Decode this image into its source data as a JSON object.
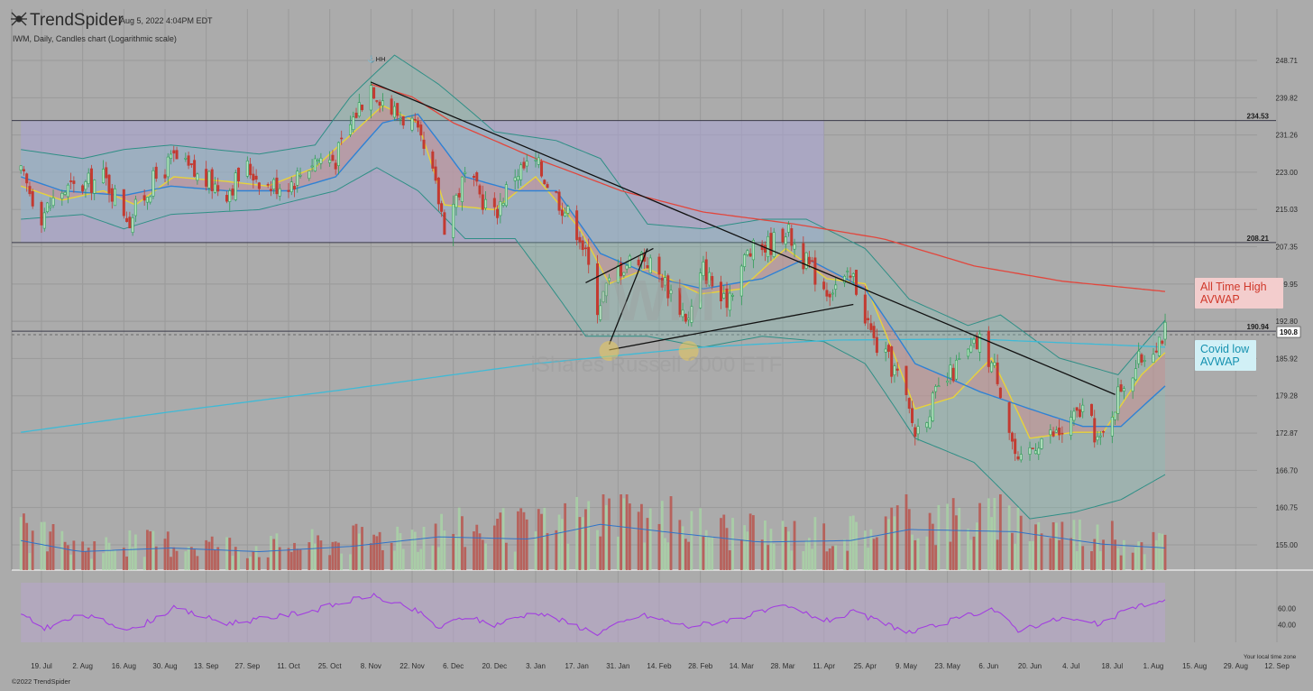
{
  "header": {
    "brand": "TrendSpider",
    "timestamp": "Aug 5, 2022 4:04PM EDT",
    "chart_subtitle": "IWM, Daily, Candles chart (Logarithmic scale)"
  },
  "watermark": {
    "ticker": "IWM",
    "name": "iShares Russell 2000 ETF"
  },
  "footer": {
    "copyright": "©2022 TrendSpider",
    "timezone_note": "Your local time zone"
  },
  "callouts": {
    "ath_line1": "All Time High",
    "ath_line2": "AVWAP",
    "covid_line1": "Covid low",
    "covid_line2": "AVWAP"
  },
  "colors": {
    "background": "#ababab",
    "box": "#a9a4d6",
    "bollinger_fill": "#7fc6bc",
    "bollinger_line": "#2f8f86",
    "ema_fast": "#e7d23a",
    "ema_slow": "#2f82d4",
    "ath_avwap": "#e2463c",
    "covid_avwap": "#3fbad6",
    "up_candle": "#2f9e57",
    "down_candle": "#c33a31",
    "rsi": "#a23ee0"
  },
  "chart_data": {
    "type": "candlestick",
    "title": "IWM, Daily, Candles chart (Logarithmic scale)",
    "y_scale": "log",
    "ylim": [
      152,
      252
    ],
    "price_ticks": [
      155.0,
      160.75,
      166.7,
      172.87,
      179.28,
      185.92,
      192.8,
      199.95,
      207.35,
      215.03,
      223.0,
      231.26,
      239.82,
      248.71
    ],
    "x_tick_labels": [
      "19. Jul",
      "2. Aug",
      "16. Aug",
      "30. Aug",
      "13. Sep",
      "27. Sep",
      "11. Oct",
      "25. Oct",
      "8. Nov",
      "22. Nov",
      "6. Dec",
      "20. Dec",
      "3. Jan",
      "17. Jan",
      "31. Jan",
      "14. Feb",
      "28. Feb",
      "14. Mar",
      "28. Mar",
      "11. Apr",
      "25. Apr",
      "9. May",
      "23. May",
      "6. Jun",
      "20. Jun",
      "4. Jul",
      "18. Jul",
      "1. Aug",
      "15. Aug",
      "29. Aug",
      "12. Sep"
    ],
    "x_range": [
      "2021-07-12",
      "2022-09-15"
    ],
    "levels": [
      {
        "label": "234.53",
        "value": 234.53
      },
      {
        "label": "208.21",
        "value": 208.21
      },
      {
        "label": "190.94",
        "value": 190.94
      }
    ],
    "last_price": {
      "label": "190.8",
      "value": 190.8
    },
    "dashed_line_value": 190.3,
    "marker": {
      "label": "HH",
      "date": "2021-11-08",
      "value": 243.5
    },
    "box": {
      "start": "2021-07-12",
      "end": "2022-04-11",
      "top": 234.53,
      "bottom": 208.21
    },
    "trendlines": [
      {
        "from": [
          "2021-11-08",
          243.5
        ],
        "to": [
          "2022-07-19",
          179.5
        ]
      },
      {
        "from": [
          "2022-01-28",
          187.5
        ],
        "to": [
          "2022-04-21",
          196.0
        ]
      },
      {
        "from": [
          "2022-01-28",
          188.5
        ],
        "to": [
          "2022-02-10",
          207.0
        ]
      },
      {
        "from": [
          "2022-01-20",
          200.2
        ],
        "to": [
          "2022-02-12",
          207.0
        ]
      }
    ],
    "anchor_highlights": [
      "2022-01-28",
      "2022-02-24"
    ],
    "series_anchors": {
      "close": [
        [
          "2021-07-12",
          222.5
        ],
        [
          "2021-07-19",
          214
        ],
        [
          "2021-07-26",
          219
        ],
        [
          "2021-08-02",
          220
        ],
        [
          "2021-08-09",
          222
        ],
        [
          "2021-08-18",
          213
        ],
        [
          "2021-08-26",
          221
        ],
        [
          "2021-09-02",
          226
        ],
        [
          "2021-09-10",
          222
        ],
        [
          "2021-09-20",
          219
        ],
        [
          "2021-09-27",
          224
        ],
        [
          "2021-10-04",
          220
        ],
        [
          "2021-10-12",
          221
        ],
        [
          "2021-10-20",
          226
        ],
        [
          "2021-10-27",
          226
        ],
        [
          "2021-11-04",
          238
        ],
        [
          "2021-11-08",
          243
        ],
        [
          "2021-11-15",
          237
        ],
        [
          "2021-11-22",
          234
        ],
        [
          "2021-11-29",
          222
        ],
        [
          "2021-12-03",
          212
        ],
        [
          "2021-12-10",
          222
        ],
        [
          "2021-12-20",
          214
        ],
        [
          "2021-12-27",
          223
        ],
        [
          "2022-01-03",
          225
        ],
        [
          "2022-01-10",
          218
        ],
        [
          "2022-01-18",
          210
        ],
        [
          "2022-01-24",
          196
        ],
        [
          "2022-01-31",
          203
        ],
        [
          "2022-02-08",
          206
        ],
        [
          "2022-02-15",
          201
        ],
        [
          "2022-02-24",
          193
        ],
        [
          "2022-03-01",
          203
        ],
        [
          "2022-03-08",
          196
        ],
        [
          "2022-03-16",
          206
        ],
        [
          "2022-03-24",
          208
        ],
        [
          "2022-03-29",
          211
        ],
        [
          "2022-04-05",
          204
        ],
        [
          "2022-04-12",
          199
        ],
        [
          "2022-04-21",
          201
        ],
        [
          "2022-04-28",
          189
        ],
        [
          "2022-05-06",
          183
        ],
        [
          "2022-05-12",
          173
        ],
        [
          "2022-05-20",
          180
        ],
        [
          "2022-05-27",
          185
        ],
        [
          "2022-06-03",
          189
        ],
        [
          "2022-06-09",
          183
        ],
        [
          "2022-06-16",
          167
        ],
        [
          "2022-06-23",
          172
        ],
        [
          "2022-07-01",
          173
        ],
        [
          "2022-07-08",
          177
        ],
        [
          "2022-07-14",
          171
        ],
        [
          "2022-07-21",
          181
        ],
        [
          "2022-07-28",
          186
        ],
        [
          "2022-08-05",
          191
        ]
      ],
      "ema_fast": [
        [
          "2021-07-12",
          220
        ],
        [
          "2021-07-26",
          217
        ],
        [
          "2021-08-09",
          219
        ],
        [
          "2021-08-20",
          216
        ],
        [
          "2021-09-02",
          222
        ],
        [
          "2021-09-20",
          221
        ],
        [
          "2021-10-04",
          220
        ],
        [
          "2021-10-20",
          224
        ],
        [
          "2021-11-04",
          233
        ],
        [
          "2021-11-12",
          238
        ],
        [
          "2021-11-24",
          234
        ],
        [
          "2021-12-03",
          216
        ],
        [
          "2021-12-20",
          215
        ],
        [
          "2022-01-03",
          222
        ],
        [
          "2022-01-18",
          211
        ],
        [
          "2022-01-28",
          200
        ],
        [
          "2022-02-10",
          203
        ],
        [
          "2022-02-28",
          198
        ],
        [
          "2022-03-14",
          199
        ],
        [
          "2022-03-29",
          207
        ],
        [
          "2022-04-12",
          201
        ],
        [
          "2022-04-25",
          200
        ],
        [
          "2022-05-12",
          177
        ],
        [
          "2022-05-25",
          179
        ],
        [
          "2022-06-07",
          186
        ],
        [
          "2022-06-20",
          172
        ],
        [
          "2022-07-05",
          173
        ],
        [
          "2022-07-15",
          173
        ],
        [
          "2022-07-28",
          183
        ],
        [
          "2022-08-05",
          187
        ]
      ],
      "ema_slow": [
        [
          "2021-07-12",
          222
        ],
        [
          "2021-07-26",
          219
        ],
        [
          "2021-08-16",
          218
        ],
        [
          "2021-09-01",
          220
        ],
        [
          "2021-09-20",
          219
        ],
        [
          "2021-10-11",
          219
        ],
        [
          "2021-10-27",
          222
        ],
        [
          "2021-11-12",
          234
        ],
        [
          "2021-11-24",
          236
        ],
        [
          "2021-12-10",
          222
        ],
        [
          "2021-12-27",
          219
        ],
        [
          "2022-01-10",
          219
        ],
        [
          "2022-01-25",
          206
        ],
        [
          "2022-02-14",
          201
        ],
        [
          "2022-03-01",
          199
        ],
        [
          "2022-03-21",
          201
        ],
        [
          "2022-04-05",
          205
        ],
        [
          "2022-04-25",
          199
        ],
        [
          "2022-05-12",
          185
        ],
        [
          "2022-06-03",
          180
        ],
        [
          "2022-06-20",
          177
        ],
        [
          "2022-07-08",
          174
        ],
        [
          "2022-07-21",
          174
        ],
        [
          "2022-08-05",
          181
        ]
      ],
      "ath_avwap": [
        [
          "2021-11-08",
          243
        ],
        [
          "2021-11-22",
          240
        ],
        [
          "2021-12-06",
          234
        ],
        [
          "2022-01-03",
          226
        ],
        [
          "2022-02-01",
          219
        ],
        [
          "2022-03-01",
          214.5
        ],
        [
          "2022-04-01",
          212
        ],
        [
          "2022-05-01",
          209
        ],
        [
          "2022-06-01",
          203.5
        ],
        [
          "2022-07-01",
          200.5
        ],
        [
          "2022-08-05",
          198.5
        ]
      ],
      "covid_avwap": [
        [
          "2021-07-12",
          173
        ],
        [
          "2021-09-01",
          176.5
        ],
        [
          "2021-11-01",
          180.5
        ],
        [
          "2022-01-03",
          185
        ],
        [
          "2022-03-01",
          188
        ],
        [
          "2022-04-15",
          189.3
        ],
        [
          "2022-06-01",
          189.5
        ],
        [
          "2022-08-05",
          188
        ]
      ],
      "bb_upper": [
        [
          "2021-07-12",
          228
        ],
        [
          "2021-08-02",
          226
        ],
        [
          "2021-08-16",
          228
        ],
        [
          "2021-09-01",
          229
        ],
        [
          "2021-10-01",
          227
        ],
        [
          "2021-10-20",
          229
        ],
        [
          "2021-11-01",
          240
        ],
        [
          "2021-11-16",
          250
        ],
        [
          "2021-12-01",
          243
        ],
        [
          "2021-12-20",
          232
        ],
        [
          "2022-01-10",
          230
        ],
        [
          "2022-01-25",
          226
        ],
        [
          "2022-02-10",
          212
        ],
        [
          "2022-03-01",
          211
        ],
        [
          "2022-03-21",
          213
        ],
        [
          "2022-04-05",
          213
        ],
        [
          "2022-04-25",
          207
        ],
        [
          "2022-05-10",
          197
        ],
        [
          "2022-05-30",
          192
        ],
        [
          "2022-06-10",
          194
        ],
        [
          "2022-06-30",
          186
        ],
        [
          "2022-07-20",
          183
        ],
        [
          "2022-08-05",
          193
        ]
      ],
      "bb_lower": [
        [
          "2021-07-12",
          213
        ],
        [
          "2021-08-02",
          214
        ],
        [
          "2021-08-16",
          211
        ],
        [
          "2021-09-01",
          214
        ],
        [
          "2021-10-01",
          215
        ],
        [
          "2021-10-27",
          219
        ],
        [
          "2021-11-10",
          224
        ],
        [
          "2021-11-24",
          219
        ],
        [
          "2021-12-10",
          209
        ],
        [
          "2021-12-27",
          209
        ],
        [
          "2022-01-20",
          190
        ],
        [
          "2022-02-10",
          190
        ],
        [
          "2022-03-01",
          188
        ],
        [
          "2022-03-21",
          190
        ],
        [
          "2022-04-11",
          189
        ],
        [
          "2022-04-25",
          185
        ],
        [
          "2022-05-12",
          172
        ],
        [
          "2022-06-01",
          168
        ],
        [
          "2022-06-20",
          159
        ],
        [
          "2022-07-05",
          160
        ],
        [
          "2022-07-21",
          162
        ],
        [
          "2022-08-05",
          166
        ]
      ],
      "volume": [
        [
          "2021-07-12",
          40
        ],
        [
          "2021-08-01",
          25
        ],
        [
          "2021-09-01",
          30
        ],
        [
          "2021-10-01",
          25
        ],
        [
          "2021-11-01",
          32
        ],
        [
          "2021-12-01",
          45
        ],
        [
          "2022-01-01",
          42
        ],
        [
          "2022-01-25",
          62
        ],
        [
          "2022-02-20",
          50
        ],
        [
          "2022-03-20",
          38
        ],
        [
          "2022-04-20",
          40
        ],
        [
          "2022-05-10",
          55
        ],
        [
          "2022-06-15",
          52
        ],
        [
          "2022-07-15",
          35
        ],
        [
          "2022-08-05",
          30
        ]
      ],
      "rsi": [
        [
          "2021-07-12",
          52
        ],
        [
          "2021-07-20",
          36
        ],
        [
          "2021-08-02",
          52
        ],
        [
          "2021-08-19",
          34
        ],
        [
          "2021-09-02",
          60
        ],
        [
          "2021-09-20",
          42
        ],
        [
          "2021-10-04",
          48
        ],
        [
          "2021-10-20",
          58
        ],
        [
          "2021-11-08",
          76
        ],
        [
          "2021-11-24",
          56
        ],
        [
          "2021-12-01",
          36
        ],
        [
          "2021-12-10",
          50
        ],
        [
          "2021-12-20",
          40
        ],
        [
          "2022-01-03",
          56
        ],
        [
          "2022-01-24",
          30
        ],
        [
          "2022-02-08",
          52
        ],
        [
          "2022-02-24",
          38
        ],
        [
          "2022-03-10",
          46
        ],
        [
          "2022-03-29",
          62
        ],
        [
          "2022-04-12",
          45
        ],
        [
          "2022-04-21",
          55
        ],
        [
          "2022-05-11",
          30
        ],
        [
          "2022-05-27",
          48
        ],
        [
          "2022-06-07",
          60
        ],
        [
          "2022-06-16",
          34
        ],
        [
          "2022-07-01",
          48
        ],
        [
          "2022-07-14",
          40
        ],
        [
          "2022-07-25",
          62
        ],
        [
          "2022-08-05",
          68
        ]
      ]
    }
  }
}
